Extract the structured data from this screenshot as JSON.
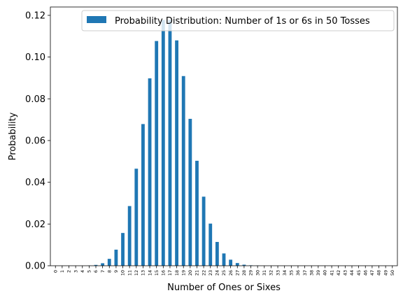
{
  "chart_data": {
    "type": "bar",
    "title": "",
    "xlabel": "Number of Ones or Sixes",
    "ylabel": "Probability",
    "ylim": [
      0,
      0.124
    ],
    "yticks": [
      0.0,
      0.02,
      0.04,
      0.06,
      0.08,
      0.1,
      0.12
    ],
    "ytick_labels": [
      "0.00",
      "0.02",
      "0.04",
      "0.06",
      "0.08",
      "0.10",
      "0.12"
    ],
    "grid": false,
    "legend_position": "top-right",
    "categories": [
      "0",
      "1",
      "2",
      "3",
      "4",
      "5",
      "6",
      "7",
      "8",
      "9",
      "10",
      "11",
      "12",
      "13",
      "14",
      "15",
      "16",
      "17",
      "18",
      "19",
      "20",
      "21",
      "22",
      "23",
      "24",
      "25",
      "26",
      "27",
      "28",
      "29",
      "30",
      "31",
      "32",
      "33",
      "34",
      "35",
      "36",
      "37",
      "38",
      "39",
      "40",
      "41",
      "42",
      "43",
      "44",
      "45",
      "46",
      "47",
      "48",
      "49",
      "50"
    ],
    "series": [
      {
        "name": "Probability Distribution: Number of 1s or 6s in 50 Tosses",
        "color": "#1f77b4",
        "values": [
          0.0,
          0.0,
          0.0,
          0.0,
          0.0,
          0.0001,
          0.0004,
          0.0012,
          0.0033,
          0.0077,
          0.0157,
          0.0286,
          0.0465,
          0.0679,
          0.0898,
          0.1077,
          0.1178,
          0.1178,
          0.108,
          0.0909,
          0.0704,
          0.0503,
          0.0331,
          0.0202,
          0.0114,
          0.0059,
          0.0029,
          0.0013,
          0.0005,
          0.0002,
          0.0001,
          0.0,
          0.0,
          0.0,
          0.0,
          0.0,
          0.0,
          0.0,
          0.0,
          0.0,
          0.0,
          0.0,
          0.0,
          0.0,
          0.0,
          0.0,
          0.0,
          0.0,
          0.0,
          0.0,
          0.0
        ]
      }
    ]
  }
}
